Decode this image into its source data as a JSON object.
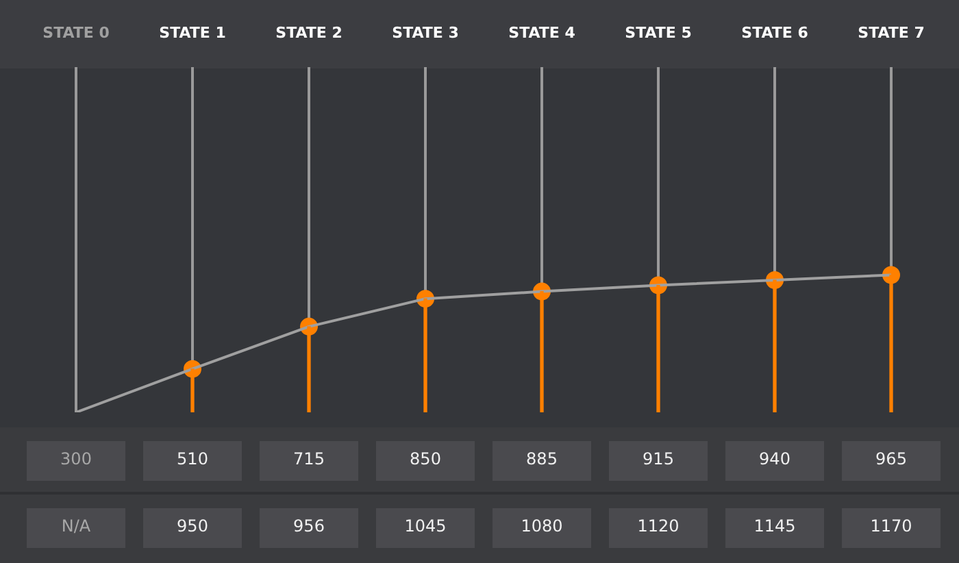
{
  "chart_data": {
    "type": "line",
    "categories": [
      "STATE 0",
      "STATE 1",
      "STATE 2",
      "STATE 3",
      "STATE 4",
      "STATE 5",
      "STATE 6",
      "STATE 7"
    ],
    "series": [
      {
        "color": "#a0a0a0",
        "marker": "none",
        "values": [
          300,
          510,
          715,
          850,
          885,
          915,
          940,
          965
        ],
        "value_labels": [
          "300",
          "510",
          "715",
          "850",
          "885",
          "915",
          "940",
          "965"
        ]
      },
      {
        "type": "bar",
        "color": "#ff8000",
        "values": [
          null,
          510,
          715,
          850,
          885,
          915,
          940,
          965
        ]
      },
      {
        "type": "scatter",
        "color": "#ff8000",
        "marker": "circle",
        "values": [
          null,
          510,
          715,
          850,
          885,
          915,
          940,
          965
        ]
      }
    ],
    "ylim": [
      300,
      1970
    ],
    "grid": "x",
    "tick_labels": "x",
    "annotations": [
      "N/A",
      "950",
      "956",
      "1045",
      "1080",
      "1120",
      "1145",
      "1170"
    ]
  }
}
